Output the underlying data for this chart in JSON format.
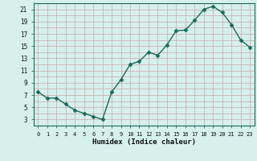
{
  "x": [
    0,
    1,
    2,
    3,
    4,
    5,
    6,
    7,
    8,
    9,
    10,
    11,
    12,
    13,
    14,
    15,
    16,
    17,
    18,
    19,
    20,
    21,
    22,
    23
  ],
  "y": [
    7.5,
    6.5,
    6.5,
    5.5,
    4.5,
    4.0,
    3.5,
    3.0,
    7.5,
    9.5,
    12.0,
    12.5,
    14.0,
    13.5,
    15.2,
    17.5,
    17.6,
    19.2,
    21.0,
    21.5,
    20.5,
    18.5,
    16.0,
    14.8
  ],
  "xlabel": "Humidex (Indice chaleur)",
  "line_color": "#1a6b5a",
  "marker": "D",
  "marker_size": 2.5,
  "bg_color": "#d6f0ec",
  "grid_color": "#c8a8a8",
  "axis_color": "#1a6b5a",
  "ylim": [
    2,
    22
  ],
  "xlim": [
    -0.5,
    23.5
  ],
  "yticks": [
    3,
    5,
    7,
    9,
    11,
    13,
    15,
    17,
    19,
    21
  ],
  "ygrid_ticks": [
    3,
    4,
    5,
    6,
    7,
    8,
    9,
    10,
    11,
    12,
    13,
    14,
    15,
    16,
    17,
    18,
    19,
    20,
    21,
    22
  ],
  "xtick_labels": [
    "0",
    "1",
    "2",
    "3",
    "4",
    "5",
    "6",
    "7",
    "8",
    "9",
    "10",
    "11",
    "12",
    "13",
    "14",
    "15",
    "16",
    "17",
    "18",
    "19",
    "20",
    "21",
    "22",
    "23"
  ]
}
